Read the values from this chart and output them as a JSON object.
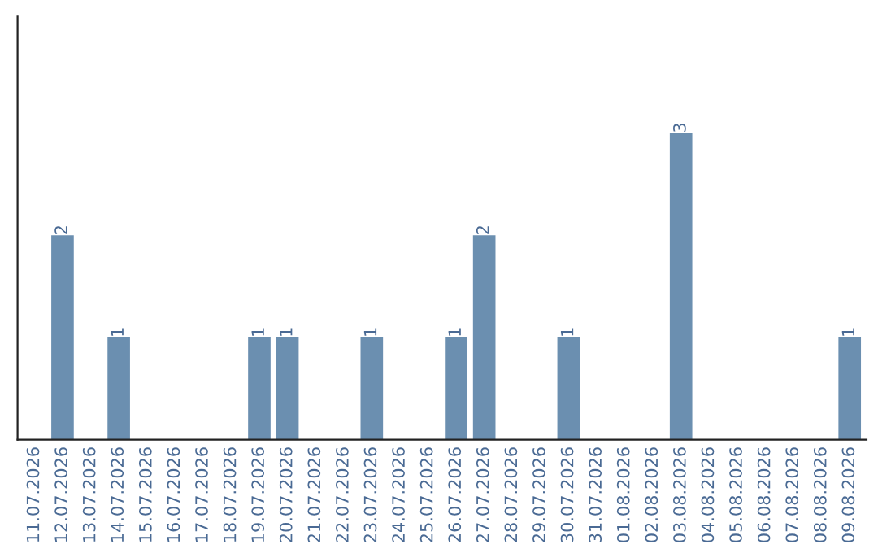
{
  "chart_data": {
    "type": "bar",
    "categories": [
      "11.07.2026",
      "12.07.2026",
      "13.07.2026",
      "14.07.2026",
      "15.07.2026",
      "16.07.2026",
      "17.07.2026",
      "18.07.2026",
      "19.07.2026",
      "20.07.2026",
      "21.07.2026",
      "22.07.2026",
      "23.07.2026",
      "24.07.2026",
      "25.07.2026",
      "26.07.2026",
      "27.07.2026",
      "28.07.2026",
      "29.07.2026",
      "30.07.2026",
      "31.07.2026",
      "01.08.2026",
      "02.08.2026",
      "03.08.2026",
      "04.08.2026",
      "05.08.2026",
      "06.08.2026",
      "07.08.2026",
      "08.08.2026",
      "09.08.2026"
    ],
    "values": [
      0,
      2,
      0,
      1,
      0,
      0,
      0,
      0,
      1,
      1,
      0,
      0,
      1,
      0,
      0,
      1,
      2,
      0,
      0,
      1,
      0,
      0,
      0,
      3,
      0,
      0,
      0,
      0,
      0,
      1
    ],
    "value_labels": [
      null,
      "2",
      null,
      "1",
      null,
      null,
      null,
      null,
      "1",
      "1",
      null,
      null,
      "1",
      null,
      null,
      "1",
      "2",
      null,
      null,
      "1",
      null,
      null,
      null,
      "3",
      null,
      null,
      null,
      null,
      null,
      "1"
    ],
    "color": "#6b8fb0",
    "tick_labels": "x",
    "grid": false,
    "legend": false
  }
}
